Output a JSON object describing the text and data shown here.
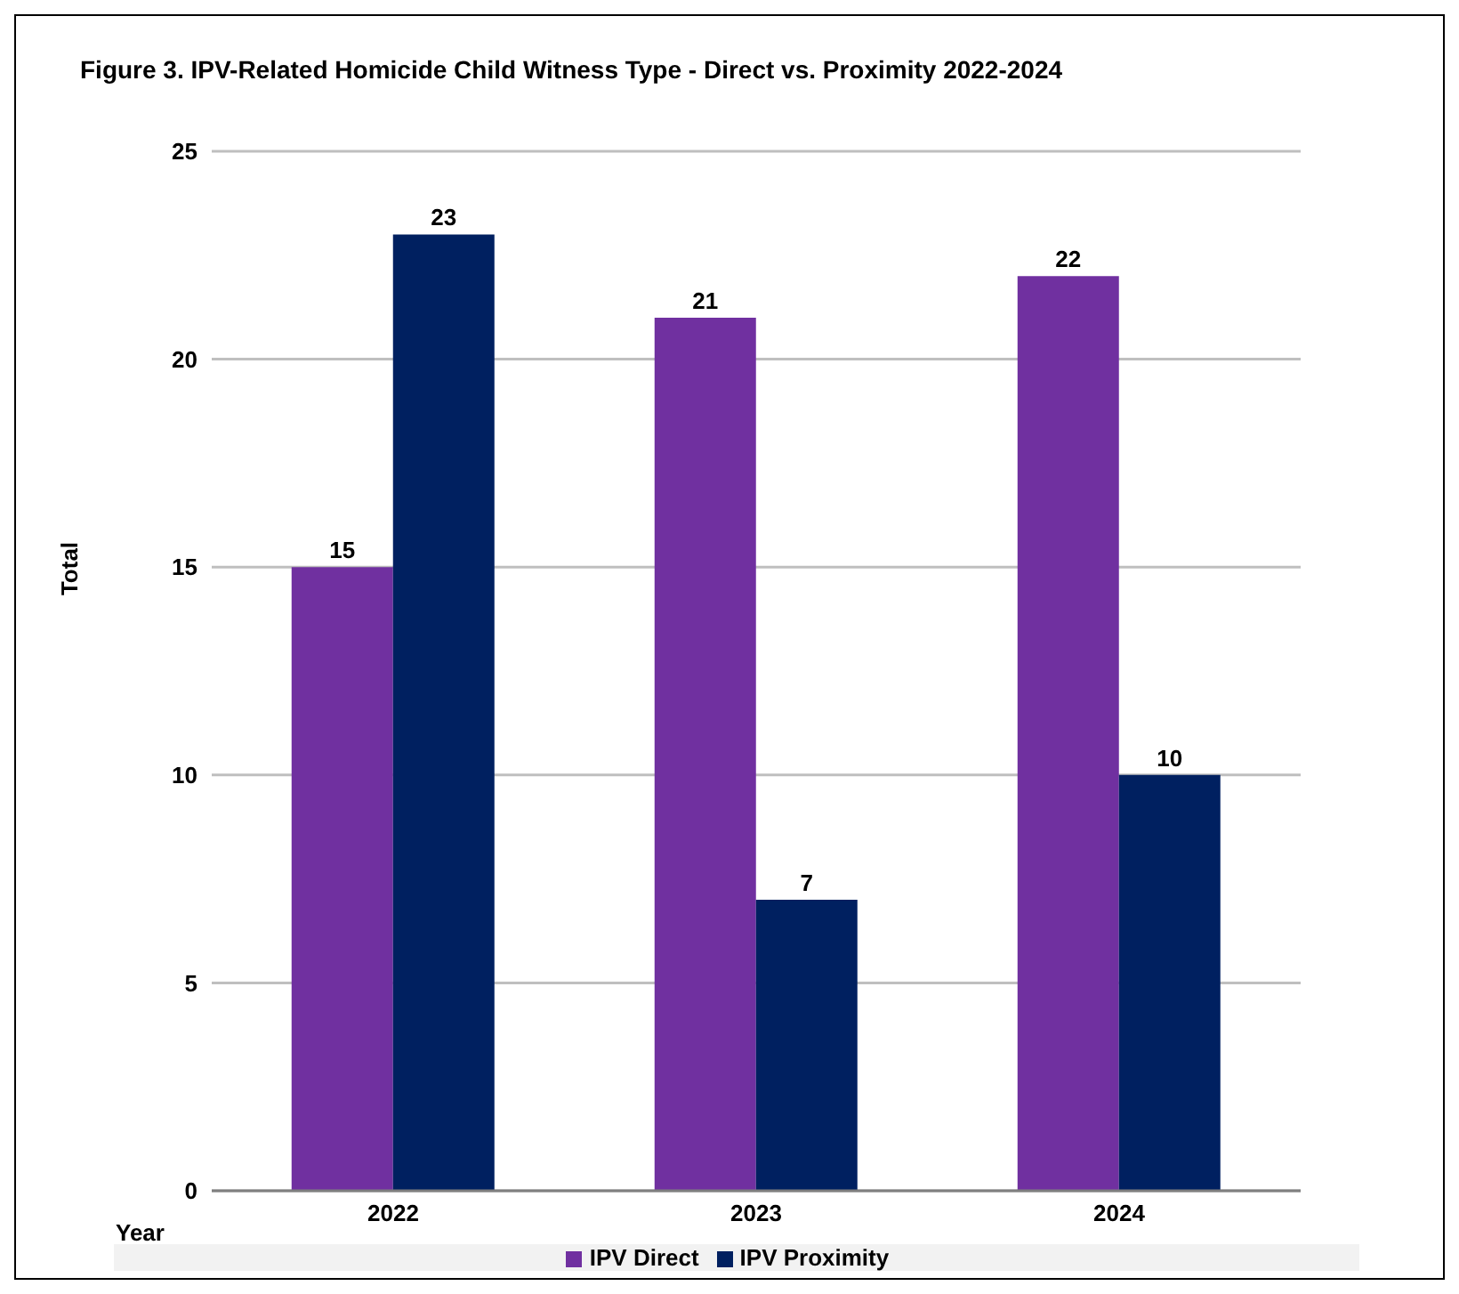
{
  "chart_data": {
    "type": "bar",
    "title": "Figure 3. IPV-Related Homicide Child Witness Type - Direct vs. Proximity 2022-2024",
    "xlabel": "Year",
    "ylabel": "Total",
    "categories": [
      "2022",
      "2023",
      "2024"
    ],
    "series": [
      {
        "name": "IPV Direct",
        "color": "#7030a0",
        "values": [
          15,
          21,
          22
        ]
      },
      {
        "name": "IPV Proximity",
        "color": "#002060",
        "values": [
          23,
          7,
          10
        ]
      }
    ],
    "ylim": [
      0,
      25
    ],
    "yticks": [
      0,
      5,
      10,
      15,
      20,
      25
    ],
    "grid": "y",
    "legend": "bottom",
    "data_labels": true
  }
}
